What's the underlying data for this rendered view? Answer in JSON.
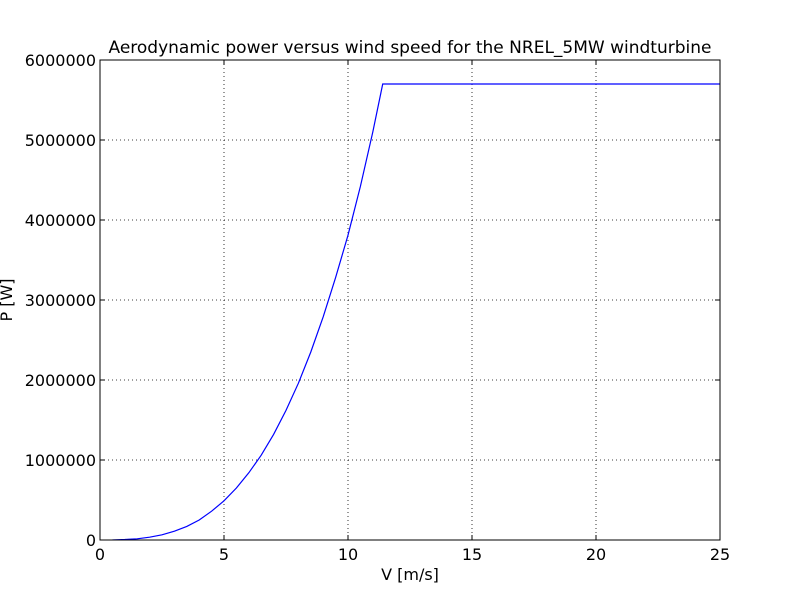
{
  "chart_data": {
    "type": "line",
    "title": "Aerodynamic power versus wind speed for the NREL_5MW windturbine",
    "xlabel": "V [m/s]",
    "ylabel": "P [W]",
    "xlim": [
      0,
      25
    ],
    "ylim": [
      0,
      6000000
    ],
    "xticks": [
      0,
      5,
      10,
      15,
      20,
      25
    ],
    "yticks": [
      0,
      1000000,
      2000000,
      3000000,
      4000000,
      5000000,
      6000000
    ],
    "grid": true,
    "line_color": "#0000ff",
    "series": [
      {
        "x": [
          0.5,
          1.0,
          1.5,
          2.0,
          2.5,
          3.0,
          3.5,
          4.0,
          4.5,
          5.0,
          5.5,
          6.0,
          6.5,
          7.0,
          7.5,
          8.0,
          8.5,
          9.0,
          9.5,
          10.0,
          10.5,
          11.0,
          11.4,
          25.0
        ],
        "y": [
          1000,
          6000,
          15000,
          35000,
          65000,
          110000,
          170000,
          250000,
          360000,
          490000,
          650000,
          840000,
          1060000,
          1320000,
          1620000,
          1960000,
          2350000,
          2790000,
          3280000,
          3810000,
          4420000,
          5100000,
          5700000,
          5700000
        ]
      }
    ]
  }
}
